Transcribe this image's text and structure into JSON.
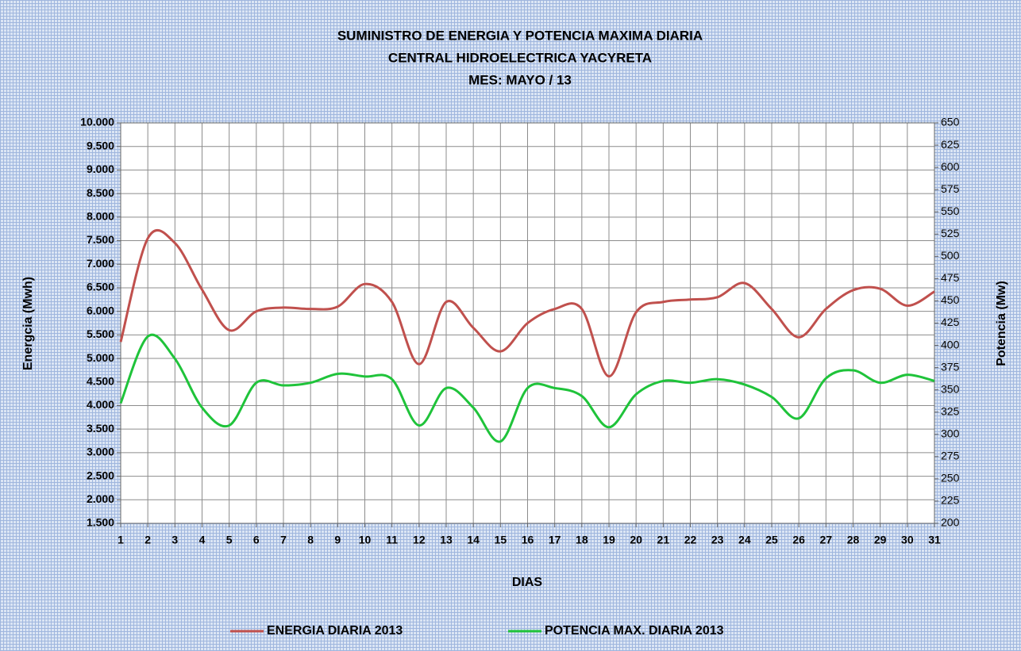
{
  "chart_data": {
    "type": "line",
    "title": "SUMINISTRO DE ENERGIA Y POTENCIA MAXIMA DIARIA",
    "subtitle": [
      "CENTRAL HIDROELECTRICA YACYRETA",
      "MES: MAYO / 13"
    ],
    "x_label": "DIAS",
    "y_label": "Energcia (Mwh)",
    "y2_label": "Potencia (Mw)",
    "categories": [
      "1",
      "2",
      "3",
      "4",
      "5",
      "6",
      "7",
      "8",
      "9",
      "10",
      "11",
      "12",
      "13",
      "14",
      "15",
      "16",
      "17",
      "18",
      "19",
      "20",
      "21",
      "22",
      "23",
      "24",
      "25",
      "26",
      "27",
      "28",
      "29",
      "30",
      "31"
    ],
    "series": [
      {
        "name": "ENERGIA DIARIA 2013",
        "color": "#c0504d",
        "values": [
          5350,
          7550,
          7450,
          6460,
          5600,
          6000,
          6080,
          6050,
          6100,
          6580,
          6200,
          4880,
          6200,
          5650,
          5150,
          5750,
          6050,
          6050,
          4620,
          5980,
          6200,
          6250,
          6300,
          6600,
          6050,
          5450,
          6050,
          6450,
          6480,
          6120,
          6420
        ]
      },
      {
        "name": "POTENCIA MAX. DIARIA 2013",
        "color": "#1fc33a",
        "axis": "y2",
        "values": [
          335,
          410,
          385,
          330,
          310,
          358,
          355,
          358,
          368,
          365,
          362,
          310,
          352,
          330,
          292,
          352,
          352,
          343,
          308,
          345,
          360,
          358,
          362,
          356,
          342,
          318,
          363,
          372,
          358,
          367,
          360
        ]
      }
    ],
    "ylim": [
      1500,
      10000
    ],
    "yticks": [
      {
        "value": 1500,
        "label": "1.500"
      },
      {
        "value": 2000,
        "label": "2.000"
      },
      {
        "value": 2500,
        "label": "2.500"
      },
      {
        "value": 3000,
        "label": "3.000"
      },
      {
        "value": 3500,
        "label": "3.500"
      },
      {
        "value": 4000,
        "label": "4.000"
      },
      {
        "value": 4500,
        "label": "4.500"
      },
      {
        "value": 5000,
        "label": "5.000"
      },
      {
        "value": 5500,
        "label": "5.500"
      },
      {
        "value": 6000,
        "label": "6.000"
      },
      {
        "value": 6500,
        "label": "6.500"
      },
      {
        "value": 7000,
        "label": "7.000"
      },
      {
        "value": 7500,
        "label": "7.500"
      },
      {
        "value": 8000,
        "label": "8.000"
      },
      {
        "value": 8500,
        "label": "8.500"
      },
      {
        "value": 9000,
        "label": "9.000"
      },
      {
        "value": 9500,
        "label": "9.500"
      },
      {
        "value": 10000,
        "label": "10.000"
      }
    ],
    "y2lim": [
      200,
      650
    ],
    "y2ticks": [
      200,
      225,
      250,
      275,
      300,
      325,
      350,
      375,
      400,
      425,
      450,
      475,
      500,
      525,
      550,
      575,
      600,
      625,
      650
    ],
    "grid": true,
    "legend": "bottom"
  }
}
